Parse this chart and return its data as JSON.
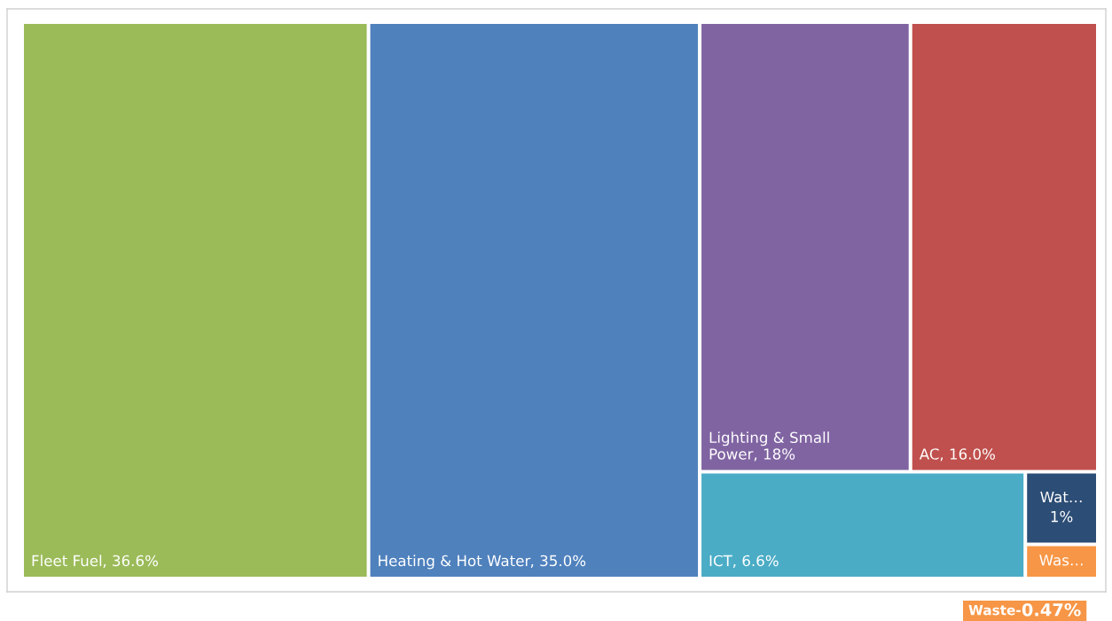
{
  "chart_data": {
    "type": "other",
    "categories": [
      "Fleet Fuel",
      "Heating & Hot Water",
      "Lighting & Small Power",
      "AC",
      "ICT",
      "Wat…",
      "Was…"
    ],
    "values": [
      36.6,
      35.0,
      18,
      16.0,
      6.6,
      1,
      0.47
    ],
    "value_labels": [
      ", 36.6%",
      ", 35.0%",
      ", 18%",
      ", 16.0%",
      ", 6.6%",
      "1%",
      "0.47%"
    ],
    "colors": [
      "#9bbb59",
      "#4f81bd",
      "#8064a2",
      "#c0504d",
      "#4bacc6",
      "#2c4d75",
      "#f79646"
    ],
    "annotations": [
      "Waste-"
    ]
  }
}
